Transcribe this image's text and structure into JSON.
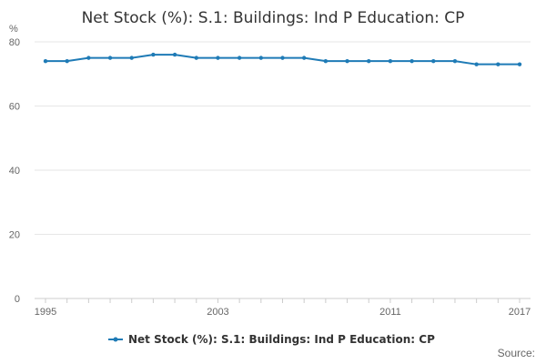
{
  "chart_data": {
    "type": "line",
    "title": "Net Stock (%): S.1: Buildings: Ind P Education: CP",
    "ylabel": "%",
    "xlabel": "",
    "xlim": [
      1995,
      2017
    ],
    "ylim": [
      0,
      80
    ],
    "y_ticks": [
      0,
      20,
      40,
      60,
      80
    ],
    "x_tick_labels": [
      "1995",
      "2003",
      "2011",
      "2017"
    ],
    "grid": "horizontal",
    "legend_position": "bottom",
    "series": [
      {
        "name": "Net Stock (%): S.1: Buildings: Ind P Education: CP",
        "color": "#1f7bb6",
        "x": [
          1995,
          1996,
          1997,
          1998,
          1999,
          2000,
          2001,
          2002,
          2003,
          2004,
          2005,
          2006,
          2007,
          2008,
          2009,
          2010,
          2011,
          2012,
          2013,
          2014,
          2015,
          2016,
          2017
        ],
        "values": [
          74,
          74,
          75,
          75,
          75,
          76,
          76,
          75,
          75,
          75,
          75,
          75,
          75,
          74,
          74,
          74,
          74,
          74,
          74,
          74,
          73,
          73,
          73
        ]
      }
    ],
    "source_label": "Source:"
  }
}
